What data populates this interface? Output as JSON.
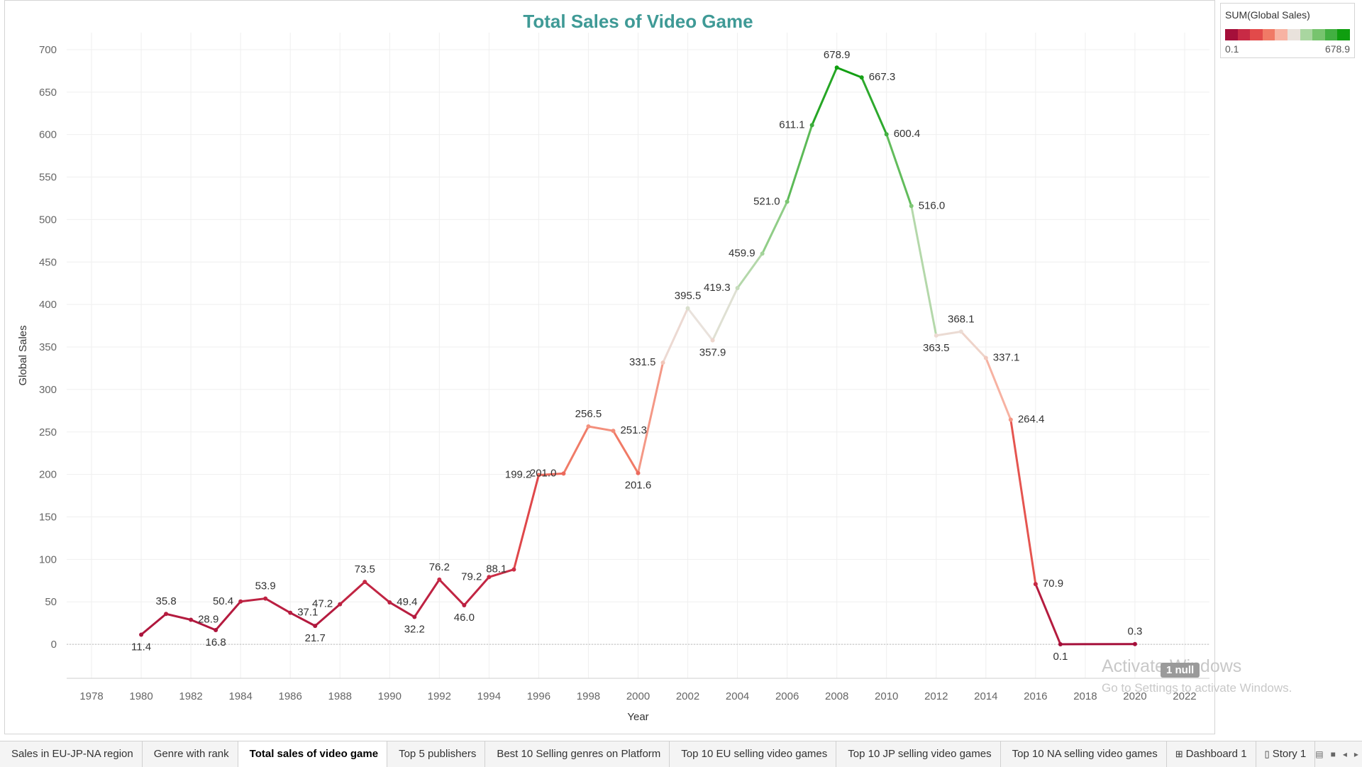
{
  "chart_data": {
    "type": "line",
    "title": "Total Sales of Video Game",
    "xlabel": "Year",
    "ylabel": "Global Sales",
    "xlim": [
      1977,
      2023
    ],
    "ylim": [
      -40,
      720
    ],
    "x_ticks": [
      1978,
      1980,
      1982,
      1984,
      1986,
      1988,
      1990,
      1992,
      1994,
      1996,
      1998,
      2000,
      2002,
      2004,
      2006,
      2008,
      2010,
      2012,
      2014,
      2016,
      2018,
      2020,
      2022
    ],
    "y_ticks": [
      0,
      50,
      100,
      150,
      200,
      250,
      300,
      350,
      400,
      450,
      500,
      550,
      600,
      650,
      700
    ],
    "grid": true,
    "legend_placement": "top-right",
    "series": [
      {
        "x": [
          1980,
          1981,
          1982,
          1983,
          1984,
          1985,
          1986,
          1987,
          1988,
          1989,
          1990,
          1991,
          1992,
          1993,
          1994,
          1995,
          1996,
          1997,
          1998,
          1999,
          2000,
          2001,
          2002,
          2003,
          2004,
          2005,
          2006,
          2007,
          2008,
          2009,
          2010,
          2011,
          2012,
          2013,
          2014,
          2015,
          2016,
          2017,
          2020
        ],
        "y": [
          11.4,
          35.8,
          28.9,
          16.8,
          50.4,
          53.9,
          37.1,
          21.7,
          47.2,
          73.5,
          49.4,
          32.2,
          76.2,
          46.0,
          79.2,
          88.1,
          199.2,
          201.0,
          256.5,
          251.3,
          201.6,
          331.5,
          395.5,
          357.9,
          419.3,
          459.9,
          521.0,
          611.1,
          678.9,
          667.3,
          600.4,
          516.0,
          363.5,
          368.1,
          337.1,
          264.4,
          70.9,
          0.1,
          0.3
        ],
        "labels": [
          "11.4",
          "35.8",
          "28.9",
          "16.8",
          "50.4",
          "53.9",
          "37.1",
          "21.7",
          "47.2",
          "73.5",
          "49.4",
          "32.2",
          "76.2",
          "46.0",
          "79.2",
          "88.1",
          "199.2",
          "201.0",
          "256.5",
          "251.3",
          "201.6",
          "331.5",
          "395.5",
          "357.9",
          "419.3",
          "459.9",
          "521.0",
          "611.1",
          "678.9",
          "667.3",
          "600.4",
          "516.0",
          "363.5",
          "368.1",
          "337.1",
          "264.4",
          "70.9",
          "0.1",
          "0.3"
        ]
      }
    ],
    "color_legend": {
      "title": "SUM(Global Sales)",
      "min_label": "0.1",
      "max_label": "678.9",
      "colors": [
        "#a50f3a",
        "#c82a45",
        "#e24a4a",
        "#f07a66",
        "#f7b3a3",
        "#e9e2dc",
        "#a9d6a0",
        "#77c46e",
        "#42b041",
        "#0f9e0f"
      ]
    },
    "null_indicator": "1 null"
  },
  "tabs": [
    {
      "label": "Sales in EU-JP-NA region",
      "icon": ""
    },
    {
      "label": "Genre with rank",
      "icon": ""
    },
    {
      "label": "Total sales of video game",
      "icon": "",
      "active": true
    },
    {
      "label": "Top 5 publishers",
      "icon": ""
    },
    {
      "label": "Best  10 Selling genres on Platform",
      "icon": ""
    },
    {
      "label": "Top 10 EU selling video games",
      "icon": ""
    },
    {
      "label": "Top 10 JP selling video games",
      "icon": ""
    },
    {
      "label": "Top 10 NA selling video games",
      "icon": ""
    },
    {
      "label": "Dashboard 1",
      "icon": "⊞"
    },
    {
      "label": "Story 1",
      "icon": "▯"
    }
  ],
  "watermark": {
    "title": "Activate Windows",
    "subtitle": "Go to Settings to activate Windows."
  }
}
